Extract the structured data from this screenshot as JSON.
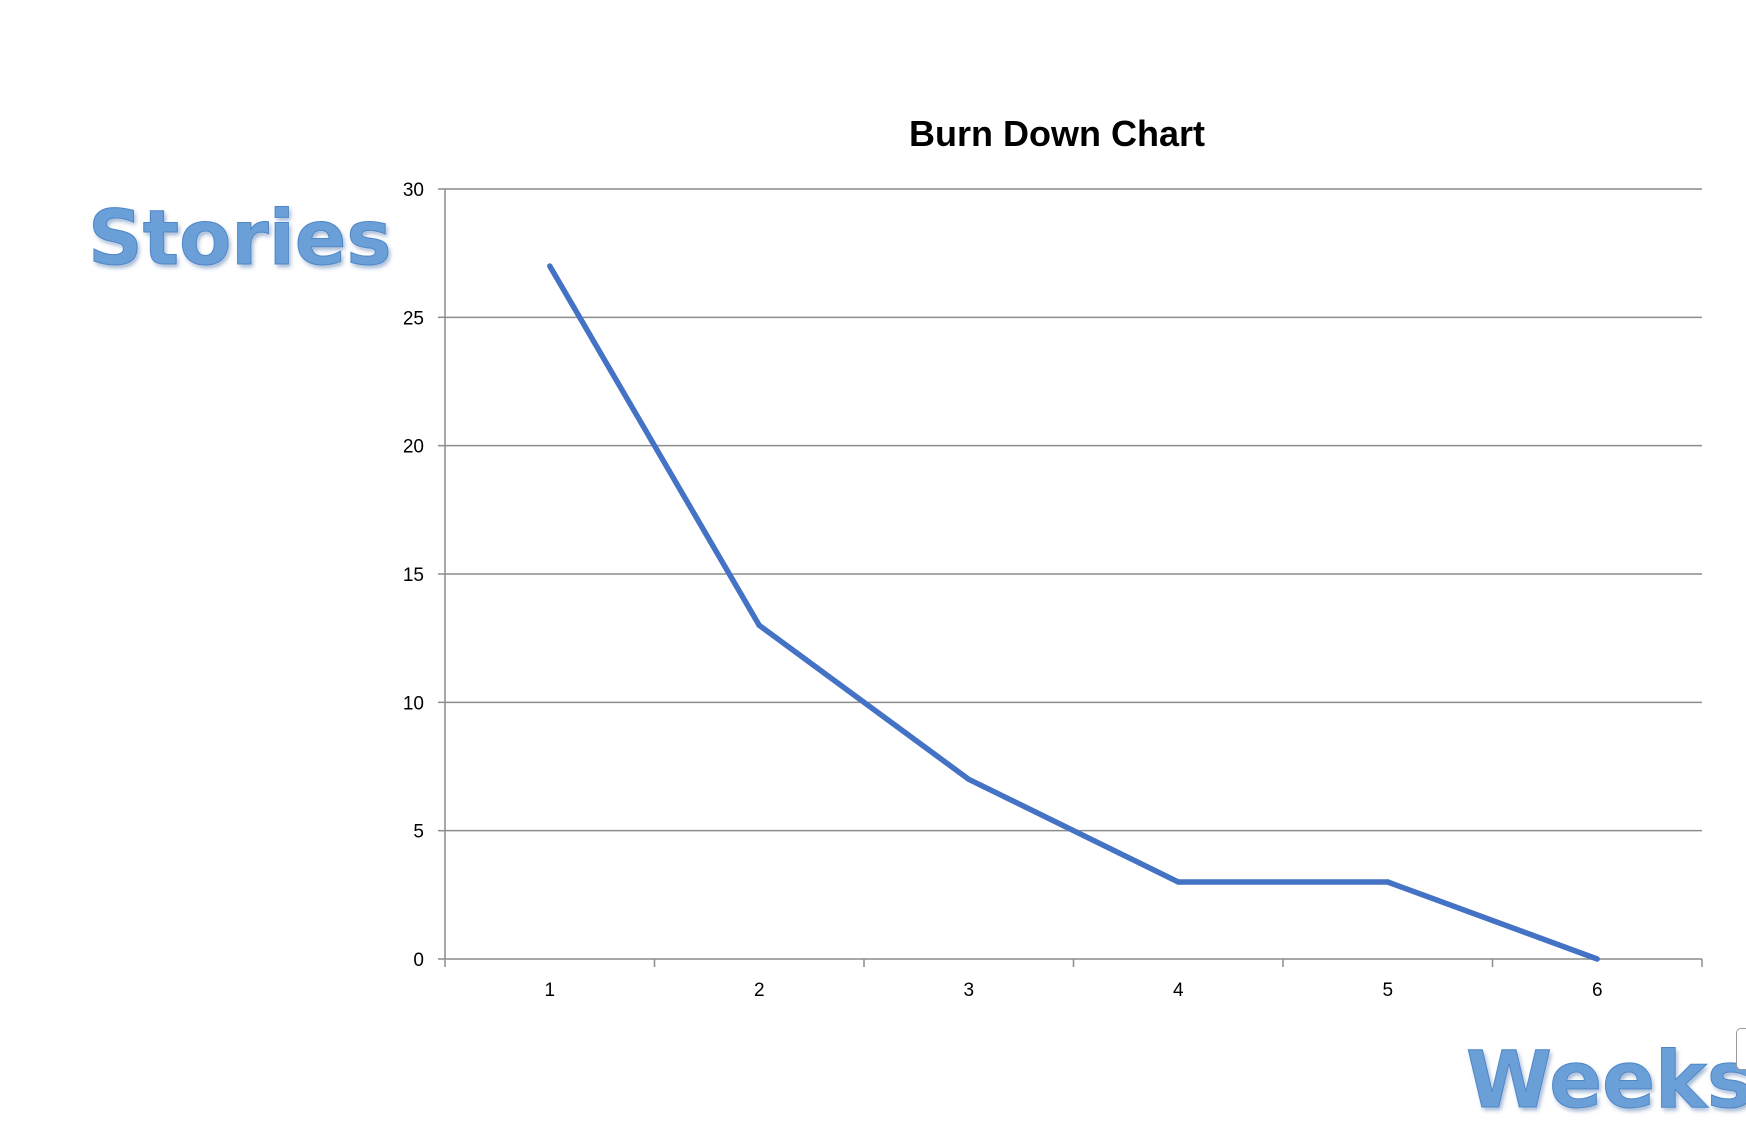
{
  "chart_data": {
    "type": "line",
    "title": "Burn Down Chart",
    "ylabel": "Stories",
    "xlabel": "Weeks",
    "categories": [
      "1",
      "2",
      "3",
      "4",
      "5",
      "6"
    ],
    "series": [
      {
        "values": [
          27,
          13,
          7,
          3,
          3,
          0
        ]
      }
    ],
    "ylim": [
      0,
      30
    ],
    "yticks": [
      "0",
      "5",
      "10",
      "15",
      "20",
      "25",
      "30"
    ],
    "grid": true,
    "legend": "none",
    "colors": {
      "line": "#4472c4",
      "grid": "#8c8c8c",
      "axis_label": "#6a9fd8"
    }
  }
}
